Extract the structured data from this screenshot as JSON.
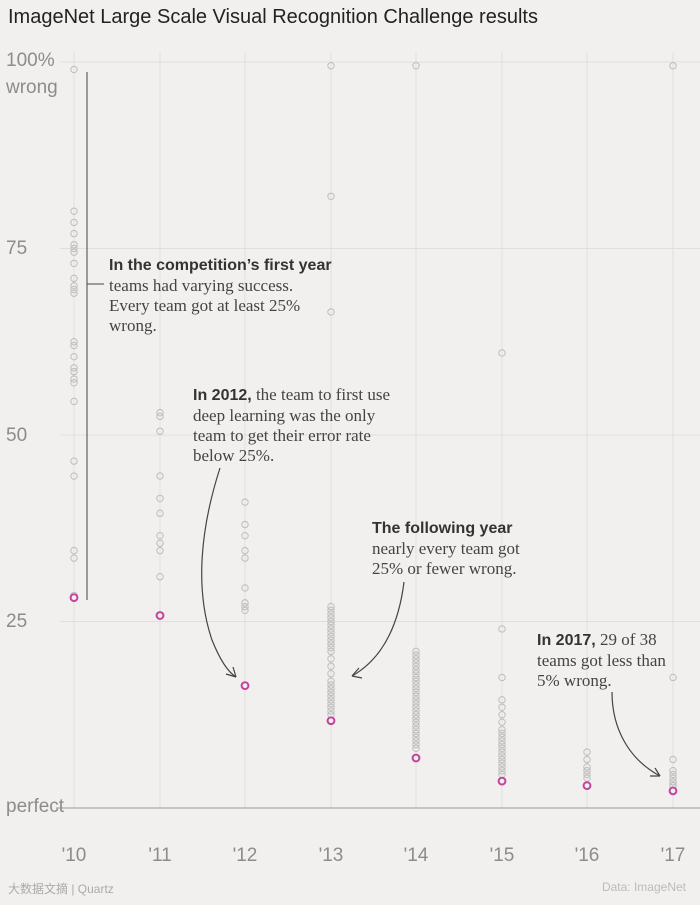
{
  "title": "ImageNet Large Scale Visual Recognition Challenge results",
  "y_axis": {
    "top_label_line1": "100%",
    "top_label_line2": "wrong",
    "label_75": "75",
    "label_50": "50",
    "label_25": "25",
    "bottom_label": "perfect"
  },
  "annotations": {
    "a2010_bold": "In the competition’s first year",
    "a2010_lines": [
      "teams had varying success.",
      "Every team got at least 25%",
      "wrong."
    ],
    "a2012_bold": "In 2012,",
    "a2012_first": " the team to first use",
    "a2012_lines": [
      "deep learning was the only",
      "team to get their error rate",
      "below 25%."
    ],
    "a2013_bold": "The following year",
    "a2013_lines": [
      "nearly every team got",
      "25% or fewer wrong."
    ],
    "a2017_bold": "In 2017,",
    "a2017_first": " 29 of 38",
    "a2017_lines": [
      "teams got less than",
      "5% wrong."
    ]
  },
  "footer": {
    "left": "大数据文摘 | Quartz",
    "right": "Data: ImageNet"
  },
  "colors": {
    "point": "#bdbdbd",
    "best_point": "#c4449c",
    "grid": "#e0dfde",
    "baseline": "#999999",
    "annotation_line": "#444444"
  },
  "chart_data": {
    "type": "scatter",
    "title": "ImageNet Large Scale Visual Recognition Challenge results",
    "xlabel": "",
    "ylabel": "",
    "categories": [
      "'10",
      "'11",
      "'12",
      "'13",
      "'14",
      "'15",
      "'16",
      "'17"
    ],
    "ylim": [
      0,
      100
    ],
    "yticks": [
      0,
      25,
      50,
      75,
      100
    ],
    "grid": true,
    "series": [
      {
        "values": [
          [
            99,
            80,
            78.5,
            77,
            75.5,
            75,
            74.5,
            73,
            71,
            70,
            69.5,
            69,
            62.5,
            62,
            60.5,
            59,
            58.5,
            57.5,
            57,
            54.5,
            46.5,
            44.5,
            34.5,
            33.5,
            28.5
          ],
          [
            53,
            52.5,
            50.5,
            44.5,
            41.5,
            39.5,
            36.5,
            35.5,
            34.5,
            31
          ],
          [
            41,
            38,
            36.5,
            34.5,
            33.5,
            29.5,
            27.5,
            27,
            26.5
          ],
          [
            99.5,
            82,
            66.5,
            27,
            26.5,
            26,
            25.5,
            25,
            24.5,
            24,
            23.5,
            23,
            22.5,
            22,
            21.5,
            21,
            20,
            19,
            18,
            17,
            16.5,
            16,
            15.5,
            15,
            14.5,
            14,
            13.5,
            13,
            12.5
          ],
          [
            99.5,
            21,
            20.5,
            20,
            19.5,
            19,
            18.5,
            18,
            17.5,
            17,
            16.5,
            16,
            15.5,
            15,
            14.5,
            14,
            13.5,
            13,
            12.5,
            12,
            11.5,
            11,
            10.5,
            10,
            9.5,
            9,
            8.5,
            8
          ],
          [
            61,
            24,
            17.5,
            14.5,
            13.5,
            12.5,
            11.5,
            10.5,
            10,
            9.5,
            9,
            8.5,
            8,
            7.5,
            7,
            6.5,
            6,
            5.5,
            5,
            4.5
          ],
          [
            7.5,
            6.5,
            5.5,
            5,
            4.5,
            4
          ],
          [
            99.5,
            17.5,
            6.5,
            5,
            4.5,
            4,
            3.5,
            3.5,
            3,
            3
          ]
        ]
      },
      {
        "values": [
          28.2,
          25.8,
          16.4,
          11.7,
          6.7,
          3.6,
          3.0,
          2.3
        ]
      }
    ]
  }
}
